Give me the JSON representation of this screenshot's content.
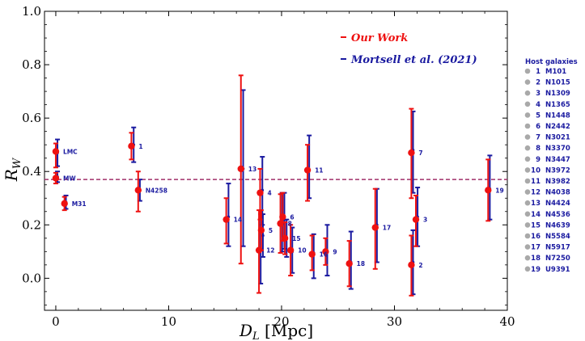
{
  "chart_data": {
    "type": "scatter",
    "xlabel_main": "D",
    "xlabel_sub": "L",
    "xlabel_unit": " [Mpc]",
    "ylabel_main": "R",
    "ylabel_sub": "W",
    "xlim": [
      -1,
      40
    ],
    "ylim": [
      -0.12,
      1.0
    ],
    "xticks": [
      0,
      10,
      20,
      30,
      40
    ],
    "yticks": [
      0.0,
      0.2,
      0.4,
      0.6,
      0.8,
      1.0
    ],
    "ytick_labels": [
      "0.0",
      "0.2",
      "0.4",
      "0.6",
      "0.8",
      "1.0"
    ],
    "reference_line_y": 0.37,
    "legend": {
      "our_work": "Our Work",
      "mortsell": "Mortsell et al. (2021)",
      "our_color": "#ee1111",
      "mortsell_color": "#1a1aa0",
      "line_color": "#a0306a"
    },
    "series": [
      {
        "name": "Our Work",
        "points": [
          {
            "x": 0.0,
            "y": 0.475,
            "lo": 0.415,
            "hi": 0.505,
            "label": "LMC"
          },
          {
            "x": 0.0,
            "y": 0.375,
            "lo": 0.355,
            "hi": 0.395,
            "label": "MW"
          },
          {
            "x": 0.77,
            "y": 0.28,
            "lo": 0.255,
            "hi": 0.305,
            "label": "M31"
          },
          {
            "x": 6.7,
            "y": 0.495,
            "lo": 0.445,
            "hi": 0.545,
            "label": "1"
          },
          {
            "x": 7.3,
            "y": 0.33,
            "lo": 0.25,
            "hi": 0.4,
            "label": "N4258"
          },
          {
            "x": 15.1,
            "y": 0.22,
            "lo": 0.13,
            "hi": 0.3,
            "label": "14"
          },
          {
            "x": 16.4,
            "y": 0.41,
            "lo": 0.055,
            "hi": 0.76,
            "label": "13"
          },
          {
            "x": 18.1,
            "y": 0.32,
            "lo": 0.22,
            "hi": 0.41,
            "label": "4"
          },
          {
            "x": 18.2,
            "y": 0.18,
            "lo": 0.105,
            "hi": 0.255,
            "label": "5"
          },
          {
            "x": 18.0,
            "y": 0.105,
            "lo": -0.055,
            "hi": 0.255,
            "label": "12"
          },
          {
            "x": 19.9,
            "y": 0.205,
            "lo": 0.095,
            "hi": 0.315,
            "label": "8"
          },
          {
            "x": 20.1,
            "y": 0.23,
            "lo": 0.14,
            "hi": 0.32,
            "label": "6"
          },
          {
            "x": 20.3,
            "y": 0.15,
            "lo": 0.09,
            "hi": 0.21,
            "label": "15"
          },
          {
            "x": 20.8,
            "y": 0.105,
            "lo": 0.01,
            "hi": 0.2,
            "label": "10"
          },
          {
            "x": 22.3,
            "y": 0.405,
            "lo": 0.29,
            "hi": 0.5,
            "label": "11"
          },
          {
            "x": 22.7,
            "y": 0.09,
            "lo": 0.03,
            "hi": 0.16,
            "label": "16"
          },
          {
            "x": 23.9,
            "y": 0.1,
            "lo": 0.05,
            "hi": 0.15,
            "label": "9"
          },
          {
            "x": 26.0,
            "y": 0.055,
            "lo": -0.03,
            "hi": 0.14,
            "label": "18"
          },
          {
            "x": 28.3,
            "y": 0.19,
            "lo": 0.035,
            "hi": 0.335,
            "label": "17"
          },
          {
            "x": 31.5,
            "y": 0.47,
            "lo": 0.3,
            "hi": 0.635,
            "label": "7"
          },
          {
            "x": 31.5,
            "y": 0.05,
            "lo": -0.065,
            "hi": 0.16,
            "label": "2"
          },
          {
            "x": 31.9,
            "y": 0.22,
            "lo": 0.12,
            "hi": 0.31,
            "label": "3"
          },
          {
            "x": 38.3,
            "y": 0.33,
            "lo": 0.215,
            "hi": 0.445,
            "label": "19"
          }
        ]
      },
      {
        "name": "Mortsell et al. (2021)",
        "points": [
          {
            "x": 0.15,
            "y": 0.47,
            "lo": 0.42,
            "hi": 0.52
          },
          {
            "x": 0.15,
            "y": 0.38,
            "lo": 0.36,
            "hi": 0.4
          },
          {
            "x": 0.9,
            "y": 0.285,
            "lo": 0.26,
            "hi": 0.31
          },
          {
            "x": 6.9,
            "y": 0.5,
            "lo": 0.435,
            "hi": 0.565
          },
          {
            "x": 7.45,
            "y": 0.33,
            "lo": 0.29,
            "hi": 0.37
          },
          {
            "x": 15.3,
            "y": 0.23,
            "lo": 0.12,
            "hi": 0.355
          },
          {
            "x": 16.6,
            "y": 0.41,
            "lo": 0.12,
            "hi": 0.705
          },
          {
            "x": 18.3,
            "y": 0.33,
            "lo": 0.2,
            "hi": 0.455
          },
          {
            "x": 18.35,
            "y": 0.16,
            "lo": 0.08,
            "hi": 0.24
          },
          {
            "x": 18.15,
            "y": 0.11,
            "lo": -0.02,
            "hi": 0.24
          },
          {
            "x": 20.05,
            "y": 0.21,
            "lo": 0.1,
            "hi": 0.32
          },
          {
            "x": 20.25,
            "y": 0.22,
            "lo": 0.11,
            "hi": 0.32
          },
          {
            "x": 20.45,
            "y": 0.15,
            "lo": 0.08,
            "hi": 0.22
          },
          {
            "x": 20.95,
            "y": 0.1,
            "lo": 0.02,
            "hi": 0.19
          },
          {
            "x": 22.45,
            "y": 0.405,
            "lo": 0.3,
            "hi": 0.535
          },
          {
            "x": 22.85,
            "y": 0.095,
            "lo": 0.0,
            "hi": 0.165
          },
          {
            "x": 24.05,
            "y": 0.1,
            "lo": 0.01,
            "hi": 0.2
          },
          {
            "x": 26.15,
            "y": 0.06,
            "lo": -0.04,
            "hi": 0.175
          },
          {
            "x": 28.45,
            "y": 0.2,
            "lo": 0.06,
            "hi": 0.335
          },
          {
            "x": 31.65,
            "y": 0.48,
            "lo": 0.32,
            "hi": 0.625
          },
          {
            "x": 31.65,
            "y": 0.06,
            "lo": -0.06,
            "hi": 0.18
          },
          {
            "x": 32.05,
            "y": 0.23,
            "lo": 0.12,
            "hi": 0.34
          },
          {
            "x": 38.45,
            "y": 0.335,
            "lo": 0.22,
            "hi": 0.46
          }
        ]
      }
    ],
    "host_galaxies": {
      "title": "Host galaxies",
      "items": [
        {
          "num": "1",
          "name": "M101"
        },
        {
          "num": "2",
          "name": "N1015"
        },
        {
          "num": "3",
          "name": "N1309"
        },
        {
          "num": "4",
          "name": "N1365"
        },
        {
          "num": "5",
          "name": "N1448"
        },
        {
          "num": "6",
          "name": "N2442"
        },
        {
          "num": "7",
          "name": "N3021"
        },
        {
          "num": "8",
          "name": "N3370"
        },
        {
          "num": "9",
          "name": "N3447"
        },
        {
          "num": "10",
          "name": "N3972"
        },
        {
          "num": "11",
          "name": "N3982"
        },
        {
          "num": "12",
          "name": "N4038"
        },
        {
          "num": "13",
          "name": "N4424"
        },
        {
          "num": "14",
          "name": "N4536"
        },
        {
          "num": "15",
          "name": "N4639"
        },
        {
          "num": "16",
          "name": "N5584"
        },
        {
          "num": "17",
          "name": "N5917"
        },
        {
          "num": "18",
          "name": "N7250"
        },
        {
          "num": "19",
          "name": "U9391"
        }
      ]
    }
  }
}
